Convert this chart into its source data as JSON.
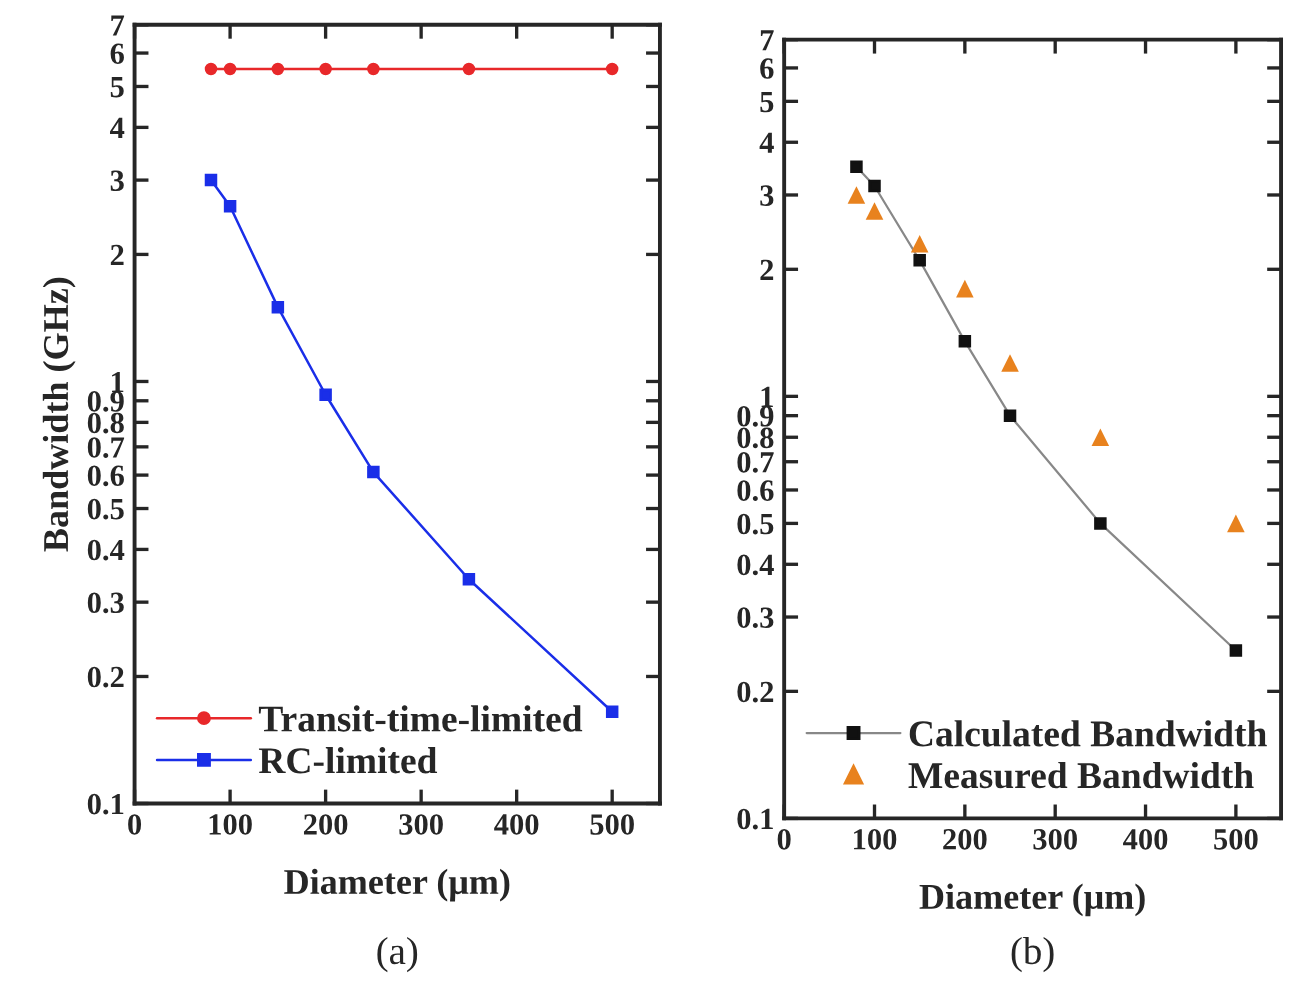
{
  "chart_data": [
    {
      "type": "line",
      "xlabel": "Diameter (μm)",
      "ylabel": "Bandwidth (GHz)",
      "annotations": [
        "(a)"
      ],
      "log": "y",
      "grid": false,
      "legend": "bottom left",
      "xlim": [
        0,
        550
      ],
      "xticks": [
        0,
        100,
        200,
        300,
        400,
        500
      ],
      "ylim": [
        0.1,
        7
      ],
      "yticks": [
        0.1,
        0.2,
        0.3,
        0.4,
        0.5,
        0.6,
        0.7,
        0.8,
        0.9,
        1,
        2,
        3,
        4,
        5,
        6,
        7
      ],
      "x": [
        80,
        100,
        150,
        200,
        250,
        350,
        500
      ],
      "series": [
        {
          "name": "Transit-time-limited",
          "color": "#e8282a",
          "marker": "circle",
          "line_style": "solid",
          "values": [
            5.5,
            5.5,
            5.5,
            5.5,
            5.5,
            5.5,
            5.5
          ]
        },
        {
          "name": "RC-limited",
          "color": "#1a2ee8",
          "marker": "square",
          "line_style": "solid",
          "values": [
            3.0,
            2.6,
            1.5,
            0.93,
            0.61,
            0.34,
            0.165
          ]
        }
      ]
    },
    {
      "type": "line",
      "xlabel": "Diameter (μm)",
      "annotations": [
        "(b)"
      ],
      "log": "y",
      "grid": false,
      "legend": "bottom left",
      "xlim": [
        0,
        550
      ],
      "xticks": [
        0,
        100,
        200,
        300,
        400,
        500
      ],
      "ylim": [
        0.1,
        7
      ],
      "yticks": [
        0.1,
        0.2,
        0.3,
        0.4,
        0.5,
        0.6,
        0.7,
        0.8,
        0.9,
        1,
        2,
        3,
        4,
        5,
        6,
        7
      ],
      "x": [
        80,
        100,
        150,
        200,
        250,
        350,
        500
      ],
      "series": [
        {
          "name": "Calculated Bandwidth",
          "type": "line",
          "color": "#111111",
          "marker": "square",
          "line_style": "solid",
          "values": [
            3.5,
            3.15,
            2.1,
            1.35,
            0.9,
            0.5,
            0.25
          ]
        },
        {
          "name": "Measured Bandwidth",
          "type": "scatter",
          "color": "#e8821e",
          "marker": "triangle",
          "values": [
            3.0,
            2.75,
            2.3,
            1.8,
            1.2,
            0.8,
            0.5
          ]
        }
      ]
    }
  ]
}
